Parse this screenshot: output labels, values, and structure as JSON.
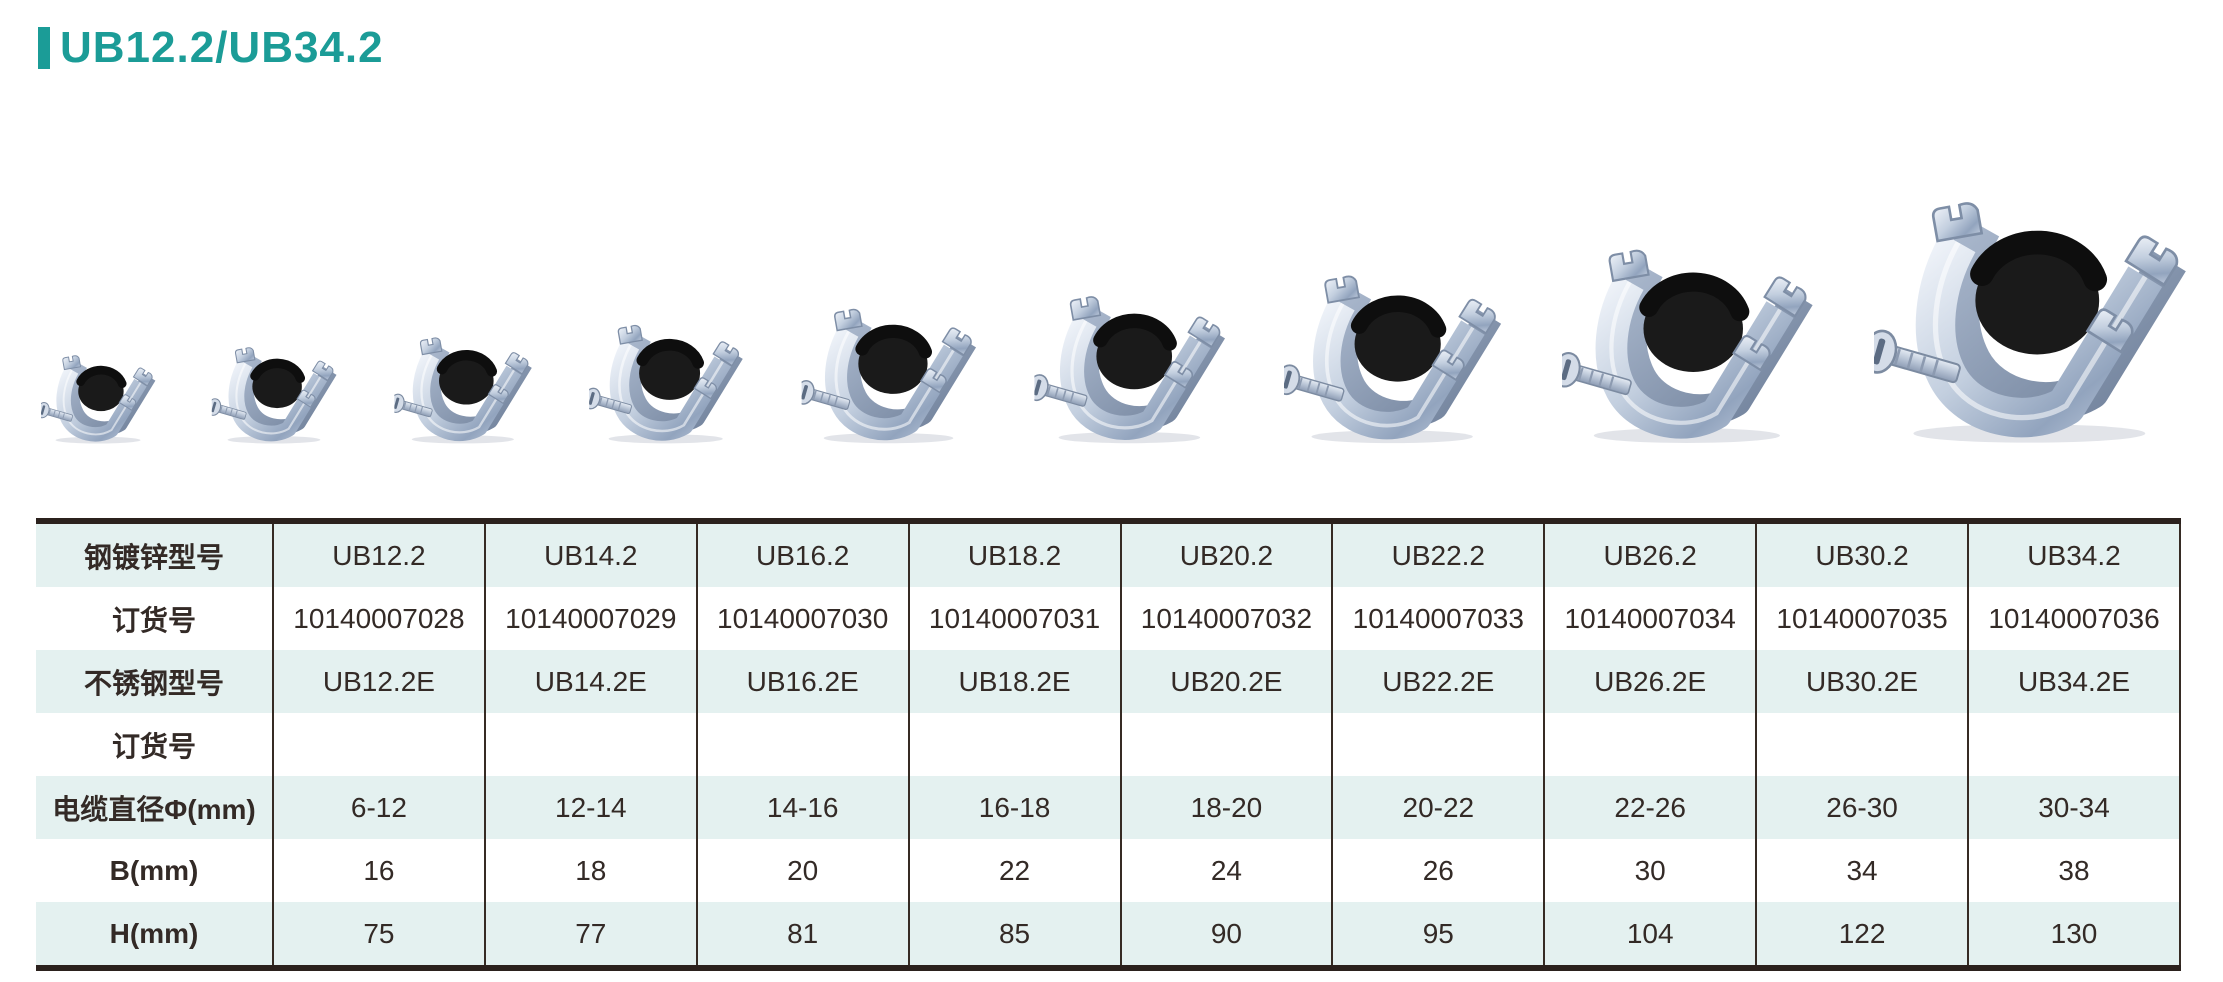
{
  "page": {
    "title": "UB12.2/UB34.2"
  },
  "colors": {
    "accent": "#1b9c97",
    "row_highlight": "#e4f1f0",
    "table_border": "#2b211d"
  },
  "product_strip": {
    "description": "nine-galvanized-strut-cable-clamps-small-to-large",
    "clamps": [
      "UB12.2",
      "UB14.2",
      "UB16.2",
      "UB18.2",
      "UB20.2",
      "UB22.2",
      "UB26.2",
      "UB30.2",
      "UB34.2"
    ]
  },
  "table": {
    "rows": [
      {
        "label": "钢镀锌型号",
        "values": [
          "UB12.2",
          "UB14.2",
          "UB16.2",
          "UB18.2",
          "UB20.2",
          "UB22.2",
          "UB26.2",
          "UB30.2",
          "UB34.2"
        ]
      },
      {
        "label": "订货号",
        "values": [
          "10140007028",
          "10140007029",
          "10140007030",
          "10140007031",
          "10140007032",
          "10140007033",
          "10140007034",
          "10140007035",
          "10140007036"
        ]
      },
      {
        "label": "不锈钢型号",
        "values": [
          "UB12.2E",
          "UB14.2E",
          "UB16.2E",
          "UB18.2E",
          "UB20.2E",
          "UB22.2E",
          "UB26.2E",
          "UB30.2E",
          "UB34.2E"
        ]
      },
      {
        "label": "订货号",
        "values": [
          "",
          "",
          "",
          "",
          "",
          "",
          "",
          "",
          ""
        ]
      },
      {
        "label": "电缆直径Φ(mm)",
        "values": [
          "6-12",
          "12-14",
          "14-16",
          "16-18",
          "18-20",
          "20-22",
          "22-26",
          "26-30",
          "30-34"
        ]
      },
      {
        "label": "B(mm)",
        "values": [
          "16",
          "18",
          "20",
          "22",
          "24",
          "26",
          "30",
          "34",
          "38"
        ]
      },
      {
        "label": "H(mm)",
        "values": [
          "75",
          "77",
          "81",
          "85",
          "90",
          "95",
          "104",
          "122",
          "130"
        ]
      }
    ]
  }
}
